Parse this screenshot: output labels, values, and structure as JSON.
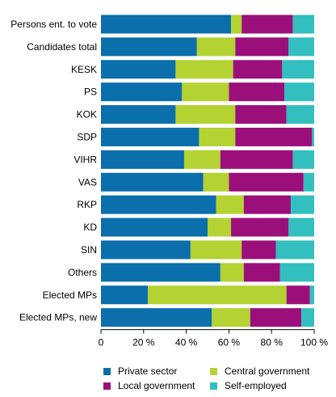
{
  "chart_data": {
    "type": "bar",
    "orientation": "horizontal",
    "stacked": "percent",
    "title": "",
    "xlabel": "",
    "ylabel": "",
    "xlim": [
      0,
      100
    ],
    "x_ticks": [
      "0",
      "20 %",
      "40 %",
      "60 %",
      "80 %",
      "100 %"
    ],
    "grid": false,
    "legend_position": "bottom",
    "categories": [
      "Persons ent. to vote",
      "Candidates total",
      "KESK",
      "PS",
      "KOK",
      "SDP",
      "VIHR",
      "VAS",
      "RKP",
      "KD",
      "SIN",
      "Others",
      "Elected MPs",
      "Elected MPs, new"
    ],
    "series": [
      {
        "name": "Private sector",
        "color": "#0a6fab",
        "values": [
          61,
          45,
          35,
          38,
          35,
          46,
          39,
          48,
          54,
          50,
          42,
          56,
          22,
          52
        ]
      },
      {
        "name": "Central government",
        "color": "#b4d232",
        "values": [
          5,
          18,
          27,
          22,
          28,
          17,
          17,
          12,
          13,
          11,
          24,
          11,
          65,
          18
        ]
      },
      {
        "name": "Local government",
        "color": "#9b0f7b",
        "values": [
          24,
          25,
          23,
          26,
          24,
          36,
          34,
          35,
          22,
          27,
          16,
          17,
          11,
          24
        ]
      },
      {
        "name": "Self-employed",
        "color": "#33bfbf",
        "values": [
          10,
          12,
          15,
          14,
          13,
          1,
          10,
          5,
          11,
          12,
          18,
          16,
          2,
          6
        ]
      }
    ]
  }
}
